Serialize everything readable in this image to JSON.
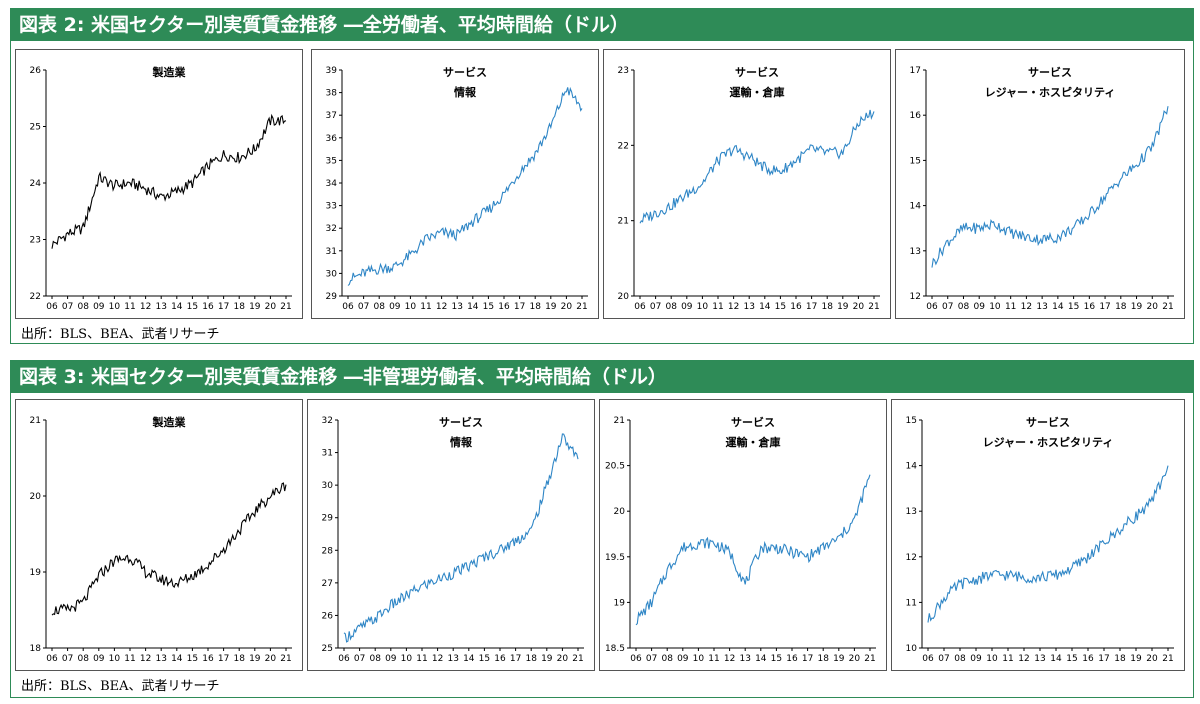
{
  "figures": [
    {
      "title": "図表 2: 米国セクター別実質賃金推移 ―全労働者、平均時間給（ドル）",
      "source": "出所：BLS、BEA、武者リサーチ",
      "panels": [
        {
          "title_lines": [
            "製造業"
          ],
          "yticks": [
            "26",
            "25",
            "24",
            "23",
            "22"
          ],
          "ymin": 22,
          "ymax": 26,
          "color": "#000000"
        },
        {
          "title_lines": [
            "サービス",
            "情報"
          ],
          "yticks": [
            "39",
            "38",
            "37",
            "36",
            "35",
            "34",
            "33",
            "32",
            "31",
            "30",
            "29"
          ],
          "ymin": 29,
          "ymax": 39,
          "color": "#2f86c6"
        },
        {
          "title_lines": [
            "サービス",
            "運輸・倉庫"
          ],
          "yticks": [
            "23",
            "22",
            "21",
            "20"
          ],
          "ymin": 20,
          "ymax": 23,
          "color": "#2f86c6"
        },
        {
          "title_lines": [
            "サービス",
            "レジャー・ホスピタリティ"
          ],
          "yticks": [
            "17",
            "16",
            "15",
            "14",
            "13",
            "12"
          ],
          "ymin": 12,
          "ymax": 17,
          "color": "#2f86c6"
        }
      ]
    },
    {
      "title": "図表 3: 米国セクター別実質賃金推移 ―非管理労働者、平均時間給（ドル）",
      "source": "出所：BLS、BEA、武者リサーチ",
      "panels": [
        {
          "title_lines": [
            "製造業"
          ],
          "yticks": [
            "21",
            "20",
            "19",
            "18"
          ],
          "ymin": 18,
          "ymax": 21,
          "color": "#000000"
        },
        {
          "title_lines": [
            "サービス",
            "情報"
          ],
          "yticks": [
            "32",
            "31",
            "30",
            "29",
            "28",
            "27",
            "26",
            "25"
          ],
          "ymin": 25,
          "ymax": 32,
          "color": "#2f86c6"
        },
        {
          "title_lines": [
            "サービス",
            "運輸・倉庫"
          ],
          "yticks": [
            "21",
            "20.5",
            "20",
            "19.5",
            "19",
            "18.5"
          ],
          "ymin": 18.5,
          "ymax": 21,
          "color": "#2f86c6"
        },
        {
          "title_lines": [
            "サービス",
            "レジャー・ホスピタリティ"
          ],
          "yticks": [
            "15",
            "14",
            "13",
            "12",
            "11",
            "10"
          ],
          "ymin": 10,
          "ymax": 15,
          "color": "#2f86c6"
        }
      ]
    }
  ],
  "chart_data": [
    {
      "type": "line",
      "title": "製造業",
      "series_group": "全労働者",
      "ylim": [
        22,
        26
      ],
      "x": [
        "06",
        "07",
        "08",
        "09",
        "10",
        "11",
        "12",
        "13",
        "14",
        "15",
        "16",
        "17",
        "18",
        "19",
        "20",
        "21"
      ],
      "y": [
        22.9,
        23.1,
        23.2,
        24.1,
        23.95,
        24.0,
        23.9,
        23.75,
        23.85,
        24.0,
        24.3,
        24.5,
        24.45,
        24.6,
        25.1,
        25.1
      ]
    },
    {
      "type": "line",
      "title": "サービス 情報",
      "series_group": "全労働者",
      "ylim": [
        29,
        39
      ],
      "x": [
        "06",
        "07",
        "08",
        "09",
        "10",
        "11",
        "12",
        "13",
        "14",
        "15",
        "16",
        "17",
        "18",
        "19",
        "20",
        "21"
      ],
      "y": [
        29.7,
        30.0,
        30.2,
        30.3,
        30.8,
        31.5,
        31.8,
        31.7,
        32.3,
        32.8,
        33.5,
        34.5,
        35.3,
        36.5,
        38.2,
        37.3
      ]
    },
    {
      "type": "line",
      "title": "サービス 運輸・倉庫",
      "series_group": "全労働者",
      "ylim": [
        20,
        23
      ],
      "x": [
        "06",
        "07",
        "08",
        "09",
        "10",
        "11",
        "12",
        "13",
        "14",
        "15",
        "16",
        "17",
        "18",
        "19",
        "20",
        "21"
      ],
      "y": [
        21.0,
        21.1,
        21.2,
        21.35,
        21.5,
        21.8,
        21.95,
        21.85,
        21.7,
        21.65,
        21.8,
        21.95,
        21.9,
        21.9,
        22.3,
        22.45
      ]
    },
    {
      "type": "line",
      "title": "サービス レジャー・ホスピタリティ",
      "series_group": "全労働者",
      "ylim": [
        12,
        17
      ],
      "x": [
        "06",
        "07",
        "08",
        "09",
        "10",
        "11",
        "12",
        "13",
        "14",
        "15",
        "16",
        "17",
        "18",
        "19",
        "20",
        "21"
      ],
      "y": [
        12.7,
        13.2,
        13.5,
        13.5,
        13.6,
        13.4,
        13.3,
        13.25,
        13.3,
        13.5,
        13.8,
        14.2,
        14.6,
        14.9,
        15.3,
        16.2
      ]
    },
    {
      "type": "line",
      "title": "製造業",
      "series_group": "非管理労働者",
      "ylim": [
        18,
        21
      ],
      "x": [
        "06",
        "07",
        "08",
        "09",
        "10",
        "11",
        "12",
        "13",
        "14",
        "15",
        "16",
        "17",
        "18",
        "19",
        "20",
        "21"
      ],
      "y": [
        18.5,
        18.5,
        18.6,
        18.95,
        19.15,
        19.2,
        19.0,
        18.9,
        18.85,
        18.95,
        19.1,
        19.3,
        19.55,
        19.8,
        20.0,
        20.15
      ]
    },
    {
      "type": "line",
      "title": "サービス 情報",
      "series_group": "非管理労働者",
      "ylim": [
        25,
        32
      ],
      "x": [
        "06",
        "07",
        "08",
        "09",
        "10",
        "11",
        "12",
        "13",
        "14",
        "15",
        "16",
        "17",
        "18",
        "19",
        "20",
        "21"
      ],
      "y": [
        25.3,
        25.6,
        25.9,
        26.3,
        26.6,
        26.9,
        27.1,
        27.3,
        27.5,
        27.8,
        28.0,
        28.3,
        28.6,
        30.0,
        31.5,
        30.8
      ]
    },
    {
      "type": "line",
      "title": "サービス 運輸・倉庫",
      "series_group": "非管理労働者",
      "ylim": [
        18.5,
        21
      ],
      "x": [
        "06",
        "07",
        "08",
        "09",
        "10",
        "11",
        "12",
        "13",
        "14",
        "15",
        "16",
        "17",
        "18",
        "19",
        "20",
        "21"
      ],
      "y": [
        18.8,
        19.0,
        19.35,
        19.6,
        19.65,
        19.65,
        19.55,
        19.2,
        19.6,
        19.6,
        19.55,
        19.5,
        19.6,
        19.7,
        19.9,
        20.4
      ]
    },
    {
      "type": "line",
      "title": "サービス レジャー・ホスピタリティ",
      "series_group": "非管理労働者",
      "ylim": [
        10,
        15
      ],
      "x": [
        "06",
        "07",
        "08",
        "09",
        "10",
        "11",
        "12",
        "13",
        "14",
        "15",
        "16",
        "17",
        "18",
        "19",
        "20",
        "21"
      ],
      "y": [
        10.6,
        11.1,
        11.4,
        11.5,
        11.6,
        11.6,
        11.55,
        11.55,
        11.6,
        11.75,
        12.0,
        12.3,
        12.6,
        12.9,
        13.2,
        14.0
      ]
    }
  ]
}
